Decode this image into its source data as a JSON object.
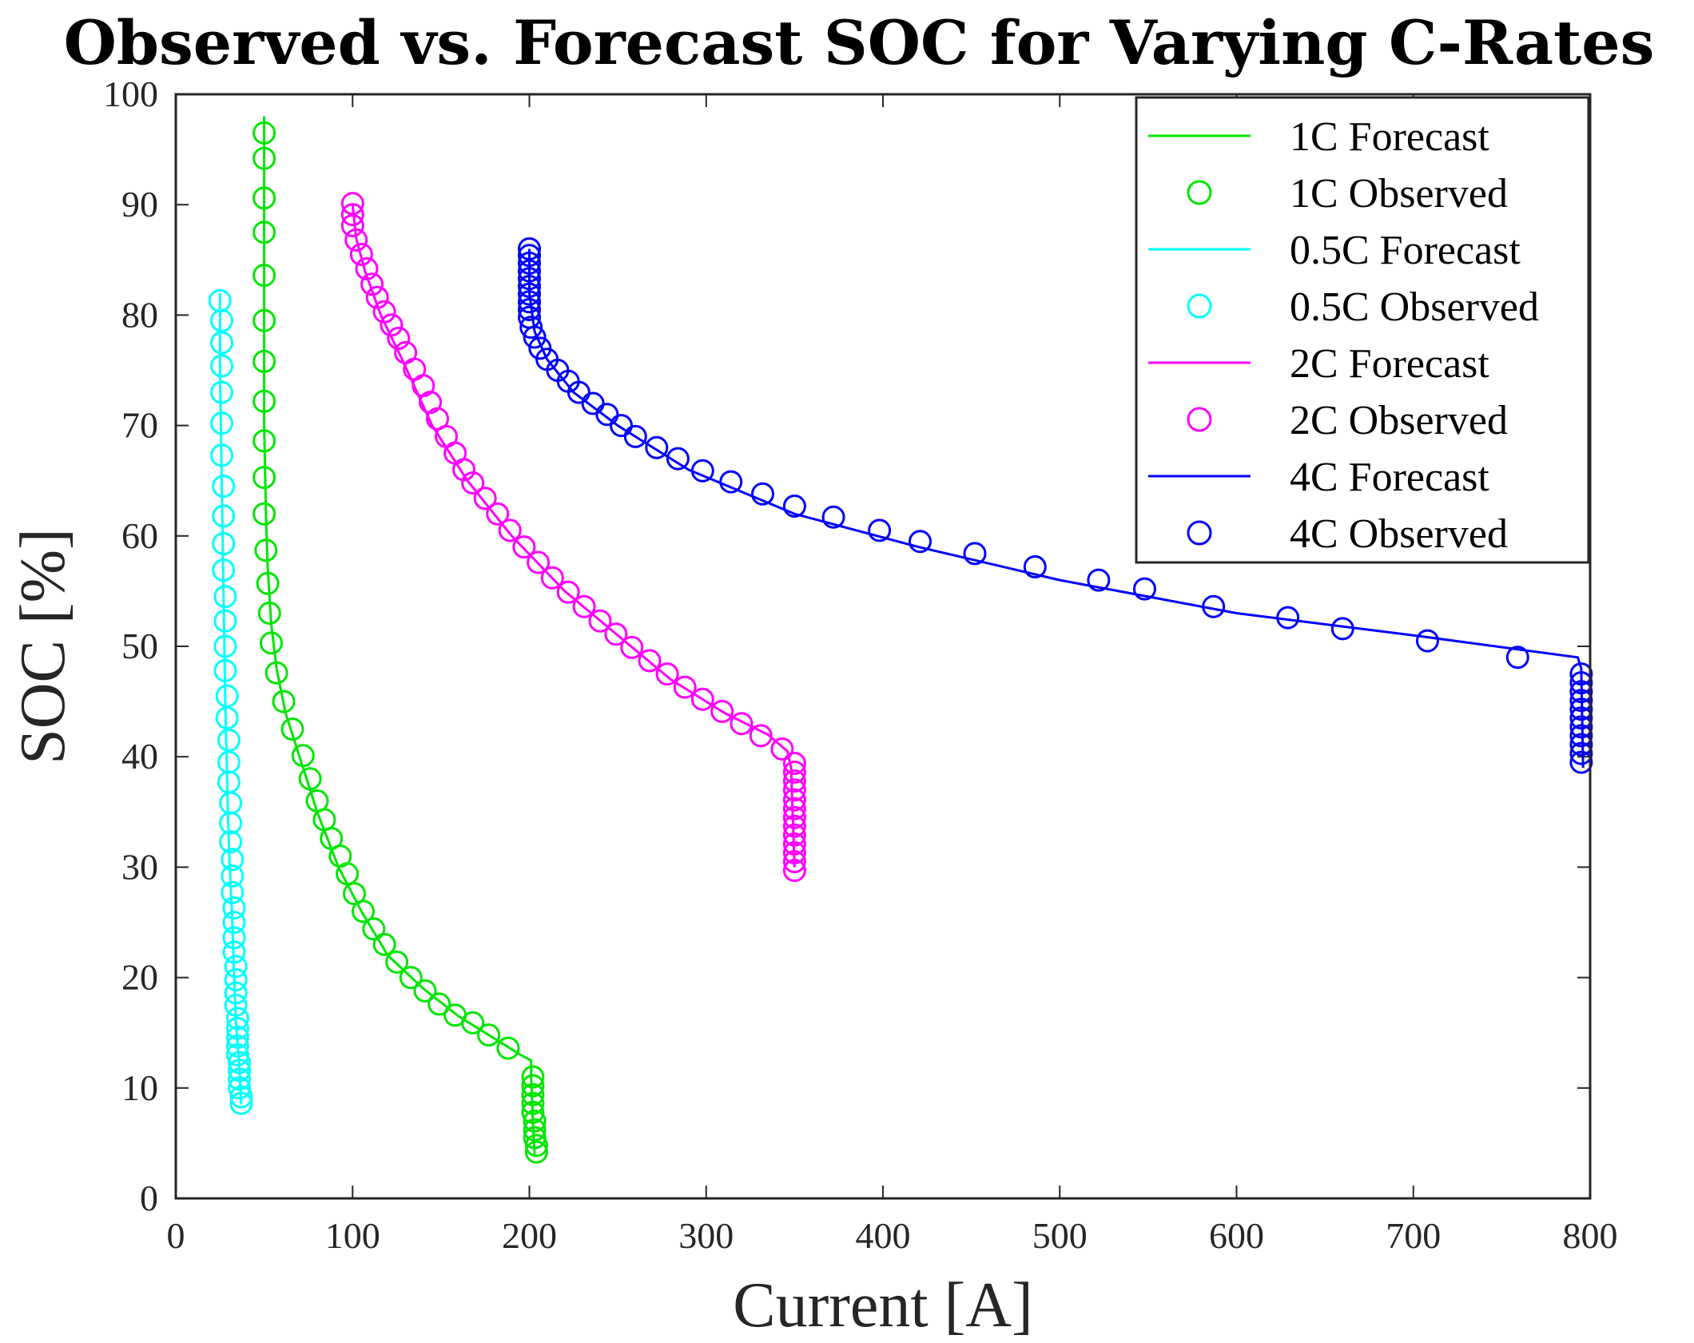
{
  "chart_data": {
    "type": "line+scatter",
    "title": "Observed vs. Forecast SOC for Varying C-Rates",
    "xlabel": "Current [A]",
    "ylabel": "SOC [%]",
    "xlim": [
      0,
      800
    ],
    "ylim": [
      0,
      100
    ],
    "xticks": [
      0,
      100,
      200,
      300,
      400,
      500,
      600,
      700,
      800
    ],
    "yticks": [
      0,
      10,
      20,
      30,
      40,
      50,
      60,
      70,
      80,
      90,
      100
    ],
    "legend_position": "top-right",
    "legend": [
      "1C Forecast",
      "1C Observed",
      "0.5C Forecast",
      "0.5C Observed",
      "2C Forecast",
      "2C Observed",
      "4C Forecast",
      "4C Observed"
    ],
    "series": [
      {
        "name": "1C",
        "color": "#00E600",
        "forecast": [
          [
            50,
            98
          ],
          [
            50,
            70
          ],
          [
            51,
            62
          ],
          [
            52,
            57
          ],
          [
            54,
            52
          ],
          [
            57,
            48
          ],
          [
            62,
            44
          ],
          [
            70,
            40
          ],
          [
            80,
            35
          ],
          [
            92,
            30
          ],
          [
            105,
            26
          ],
          [
            120,
            22
          ],
          [
            140,
            19
          ],
          [
            160,
            16.5
          ],
          [
            180,
            14.5
          ],
          [
            195,
            13
          ],
          [
            201,
            12.5
          ],
          [
            201,
            11
          ],
          [
            202,
            7
          ],
          [
            203,
            4
          ]
        ],
        "observed": [
          [
            50,
            96.5
          ],
          [
            50,
            94.2
          ],
          [
            50,
            90.6
          ],
          [
            50,
            87.5
          ],
          [
            50,
            83.6
          ],
          [
            50,
            79.5
          ],
          [
            50,
            75.8
          ],
          [
            50,
            72.2
          ],
          [
            50,
            68.6
          ],
          [
            50,
            65.3
          ],
          [
            50,
            62
          ],
          [
            51,
            58.7
          ],
          [
            52,
            55.7
          ],
          [
            53,
            53
          ],
          [
            54,
            50.3
          ],
          [
            57,
            47.6
          ],
          [
            61,
            45
          ],
          [
            66,
            42.5
          ],
          [
            72,
            40.1
          ],
          [
            76,
            38
          ],
          [
            80,
            36
          ],
          [
            84,
            34.3
          ],
          [
            88,
            32.6
          ],
          [
            93,
            31
          ],
          [
            97,
            29.4
          ],
          [
            101,
            27.6
          ],
          [
            106,
            26
          ],
          [
            112,
            24.4
          ],
          [
            118,
            23
          ],
          [
            125,
            21.4
          ],
          [
            133,
            20
          ],
          [
            141,
            18.8
          ],
          [
            149,
            17.6
          ],
          [
            158,
            16.6
          ],
          [
            168,
            15.9
          ],
          [
            177,
            14.8
          ],
          [
            188,
            13.6
          ],
          [
            202,
            11
          ],
          [
            202,
            10.2
          ],
          [
            202,
            9.4
          ],
          [
            202,
            8.6
          ],
          [
            202,
            7.8
          ],
          [
            203,
            7
          ],
          [
            203,
            6.2
          ],
          [
            203,
            5.5
          ],
          [
            204,
            4.8
          ],
          [
            204,
            4.2
          ]
        ]
      },
      {
        "name": "0.5C",
        "color": "#00FFFF",
        "forecast": [
          [
            25,
            82
          ],
          [
            25,
            75
          ],
          [
            26,
            65
          ],
          [
            27,
            55
          ],
          [
            28,
            45
          ],
          [
            29,
            38
          ],
          [
            30,
            32
          ],
          [
            32,
            25
          ],
          [
            33,
            20
          ],
          [
            34,
            16
          ],
          [
            36,
            12
          ],
          [
            37,
            8.5
          ]
        ],
        "observed": [
          [
            25,
            81.3
          ],
          [
            26,
            79.5
          ],
          [
            26,
            77.5
          ],
          [
            26,
            75.4
          ],
          [
            26,
            73
          ],
          [
            26,
            70.2
          ],
          [
            26,
            67.3
          ],
          [
            27,
            64.5
          ],
          [
            27,
            61.8
          ],
          [
            27,
            59.3
          ],
          [
            27,
            56.9
          ],
          [
            28,
            54.5
          ],
          [
            28,
            52.3
          ],
          [
            28,
            50
          ],
          [
            28,
            47.8
          ],
          [
            29,
            45.5
          ],
          [
            29,
            43.5
          ],
          [
            30,
            41.5
          ],
          [
            30,
            39.5
          ],
          [
            30,
            37.7
          ],
          [
            31,
            35.8
          ],
          [
            31,
            34
          ],
          [
            31,
            32.3
          ],
          [
            32,
            30.7
          ],
          [
            32,
            29.2
          ],
          [
            32,
            27.7
          ],
          [
            33,
            26.3
          ],
          [
            33,
            25
          ],
          [
            33,
            23.6
          ],
          [
            33,
            22.3
          ],
          [
            34,
            21
          ],
          [
            34,
            19.8
          ],
          [
            34,
            18.6
          ],
          [
            34,
            17.5
          ],
          [
            35,
            16.3
          ],
          [
            35,
            15.4
          ],
          [
            35,
            14.6
          ],
          [
            35,
            13.8
          ],
          [
            35,
            13
          ],
          [
            36,
            12.3
          ],
          [
            36,
            11.6
          ],
          [
            36,
            10.8
          ],
          [
            36,
            10
          ],
          [
            37,
            9.2
          ],
          [
            37,
            8.6
          ]
        ]
      },
      {
        "name": "2C",
        "color": "#FF00FF",
        "forecast": [
          [
            100,
            90
          ],
          [
            102,
            87
          ],
          [
            107,
            84
          ],
          [
            116,
            80
          ],
          [
            128,
            76
          ],
          [
            145,
            70
          ],
          [
            165,
            65
          ],
          [
            190,
            60
          ],
          [
            220,
            55
          ],
          [
            250,
            51
          ],
          [
            280,
            47
          ],
          [
            310,
            44
          ],
          [
            335,
            42
          ],
          [
            346,
            40.5
          ],
          [
            348,
            39
          ],
          [
            350,
            30
          ]
        ],
        "observed": [
          [
            100,
            90.1
          ],
          [
            100,
            89.1
          ],
          [
            100,
            88.1
          ],
          [
            102,
            86.8
          ],
          [
            105,
            85.5
          ],
          [
            108,
            84.2
          ],
          [
            111,
            82.8
          ],
          [
            114,
            81.6
          ],
          [
            118,
            80.3
          ],
          [
            122,
            79.1
          ],
          [
            126,
            77.9
          ],
          [
            130,
            76.6
          ],
          [
            135,
            75.1
          ],
          [
            140,
            73.6
          ],
          [
            144,
            72.1
          ],
          [
            148,
            70.6
          ],
          [
            153,
            69
          ],
          [
            158,
            67.5
          ],
          [
            163,
            66
          ],
          [
            168,
            64.8
          ],
          [
            175,
            63.4
          ],
          [
            182,
            62
          ],
          [
            189,
            60.5
          ],
          [
            197,
            59
          ],
          [
            205,
            57.6
          ],
          [
            213,
            56.2
          ],
          [
            222,
            54.9
          ],
          [
            231,
            53.6
          ],
          [
            240,
            52.3
          ],
          [
            249,
            51.1
          ],
          [
            258,
            49.9
          ],
          [
            268,
            48.7
          ],
          [
            278,
            47.5
          ],
          [
            288,
            46.3
          ],
          [
            298,
            45.2
          ],
          [
            309,
            44.1
          ],
          [
            320,
            43
          ],
          [
            331,
            41.9
          ],
          [
            343,
            40.7
          ],
          [
            350,
            39.4
          ],
          [
            350,
            38.6
          ],
          [
            350,
            37.8
          ],
          [
            350,
            37
          ],
          [
            350,
            36.1
          ],
          [
            350,
            35.3
          ],
          [
            350,
            34.5
          ],
          [
            350,
            33.7
          ],
          [
            350,
            32.9
          ],
          [
            350,
            32.1
          ],
          [
            350,
            31.3
          ],
          [
            350,
            30.5
          ],
          [
            350,
            29.7
          ]
        ]
      },
      {
        "name": "4C",
        "color": "#0000FF",
        "forecast": [
          [
            200,
            86
          ],
          [
            200,
            82
          ],
          [
            203,
            78.5
          ],
          [
            210,
            76
          ],
          [
            225,
            73
          ],
          [
            250,
            70
          ],
          [
            290,
            66
          ],
          [
            350,
            62
          ],
          [
            420,
            59
          ],
          [
            500,
            56
          ],
          [
            600,
            53
          ],
          [
            700,
            51
          ],
          [
            793,
            49
          ],
          [
            795,
            48
          ],
          [
            796,
            39
          ]
        ],
        "observed": [
          [
            200,
            86
          ],
          [
            200,
            85.4
          ],
          [
            200,
            84.7
          ],
          [
            200,
            84
          ],
          [
            200,
            83.3
          ],
          [
            200,
            82.6
          ],
          [
            200,
            81.9
          ],
          [
            200,
            81.2
          ],
          [
            200,
            80.5
          ],
          [
            200,
            79.8
          ],
          [
            201,
            78.9
          ],
          [
            203,
            78
          ],
          [
            206,
            77
          ],
          [
            210,
            76
          ],
          [
            216,
            75
          ],
          [
            222,
            74
          ],
          [
            228,
            73
          ],
          [
            236,
            72
          ],
          [
            244,
            71
          ],
          [
            252,
            70
          ],
          [
            260,
            69
          ],
          [
            272,
            68
          ],
          [
            284,
            67
          ],
          [
            298,
            65.9
          ],
          [
            314,
            64.9
          ],
          [
            332,
            63.8
          ],
          [
            350,
            62.7
          ],
          [
            372,
            61.7
          ],
          [
            398,
            60.5
          ],
          [
            421,
            59.5
          ],
          [
            452,
            58.4
          ],
          [
            486,
            57.2
          ],
          [
            522,
            56
          ],
          [
            548,
            55.2
          ],
          [
            587,
            53.6
          ],
          [
            629,
            52.6
          ],
          [
            660,
            51.6
          ],
          [
            708,
            50.5
          ],
          [
            759,
            49
          ],
          [
            795,
            47.5
          ],
          [
            795,
            46.7
          ],
          [
            795,
            45.9
          ],
          [
            795,
            45.1
          ],
          [
            795,
            44.3
          ],
          [
            795,
            43.5
          ],
          [
            795,
            42.7
          ],
          [
            795,
            41.9
          ],
          [
            795,
            41.1
          ],
          [
            795,
            40.3
          ],
          [
            795,
            39.5
          ]
        ]
      }
    ]
  }
}
